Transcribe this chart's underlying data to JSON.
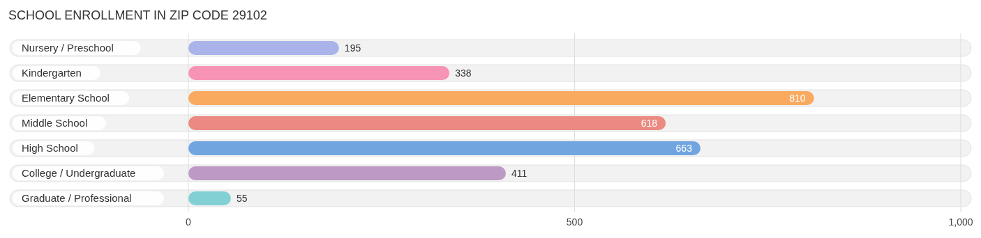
{
  "chart_data": {
    "type": "bar",
    "orientation": "horizontal",
    "title": "SCHOOL ENROLLMENT IN ZIP CODE 29102",
    "categories": [
      "Nursery / Preschool",
      "Kindergarten",
      "Elementary School",
      "Middle School",
      "High School",
      "College / Undergraduate",
      "Graduate / Professional"
    ],
    "values": [
      195,
      338,
      810,
      618,
      663,
      411,
      55
    ],
    "colors": [
      "#aab4ea",
      "#f794b6",
      "#f9aa5f",
      "#ea8a82",
      "#70a5e0",
      "#bd9ac6",
      "#83d0d4"
    ],
    "xlim": [
      0,
      1000
    ],
    "xticks": [
      0,
      500,
      {
        "value": 1000,
        "label": "1,000"
      }
    ],
    "grid": "x",
    "data_labels": true
  }
}
